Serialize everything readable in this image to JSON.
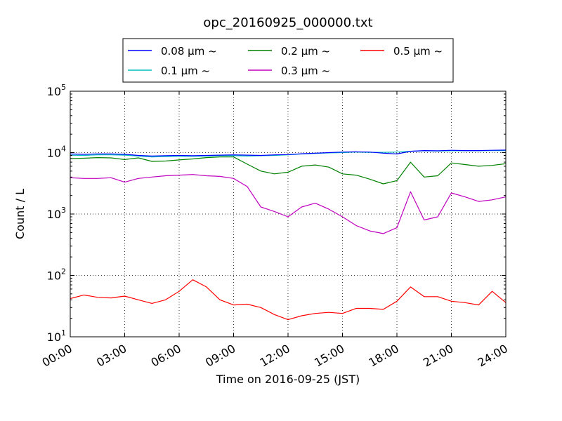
{
  "chart_data": {
    "type": "line",
    "title": "opc_20160925_000000.txt",
    "xlabel": "Time on 2016-09-25 (JST)",
    "ylabel": "Count / L",
    "yscale": "log",
    "xlim": [
      "00:00",
      "24:00"
    ],
    "ylim": [
      10,
      100000
    ],
    "x_ticks": [
      "00:00",
      "03:00",
      "06:00",
      "09:00",
      "12:00",
      "15:00",
      "18:00",
      "21:00",
      "24:00"
    ],
    "y_ticks": [
      {
        "base": "10",
        "exp": "1"
      },
      {
        "base": "10",
        "exp": "2"
      },
      {
        "base": "10",
        "exp": "3"
      },
      {
        "base": "10",
        "exp": "4"
      },
      {
        "base": "10",
        "exp": "5"
      }
    ],
    "grid": true,
    "legend_position": "top",
    "x_hours": [
      0,
      0.75,
      1.5,
      2.25,
      3,
      3.75,
      4.5,
      5.25,
      6,
      6.75,
      7.5,
      8.25,
      9,
      9.75,
      10.5,
      11.25,
      12,
      12.75,
      13.5,
      14.25,
      15,
      15.75,
      16.5,
      17.25,
      18,
      18.75,
      19.5,
      20.25,
      21,
      21.75,
      22.5,
      23.25,
      24
    ],
    "series": [
      {
        "name": "0.08 μm ~",
        "color": "#0000ff",
        "values": [
          9500,
          9400,
          9500,
          9500,
          9400,
          9000,
          8800,
          8900,
          9000,
          8900,
          9000,
          9100,
          9200,
          9100,
          9000,
          9200,
          9300,
          9600,
          9800,
          10000,
          10200,
          10300,
          10200,
          9800,
          9500,
          10500,
          10800,
          10700,
          10900,
          10800,
          10800,
          10900,
          11000
        ]
      },
      {
        "name": "0.1 μm ~",
        "color": "#00bfbf",
        "values": [
          9100,
          9000,
          9200,
          9200,
          9100,
          8800,
          8500,
          8600,
          8700,
          8700,
          8800,
          8900,
          8900,
          8800,
          8900,
          9000,
          9200,
          9500,
          9700,
          9900,
          10000,
          10200,
          10100,
          10100,
          10200,
          10500,
          10700,
          10600,
          10700,
          10700,
          10700,
          10800,
          10800
        ]
      },
      {
        "name": "0.2 μm ~",
        "color": "#008000",
        "values": [
          8000,
          8100,
          8300,
          8200,
          7700,
          8200,
          7200,
          7300,
          7600,
          7900,
          8300,
          8500,
          8500,
          6500,
          5000,
          4500,
          4800,
          6000,
          6300,
          5800,
          4500,
          4300,
          3700,
          3100,
          3500,
          7000,
          4000,
          4200,
          6800,
          6400,
          6000,
          6200,
          6600
        ]
      },
      {
        "name": "0.3 μm ~",
        "color": "#bf00bf",
        "values": [
          3900,
          3800,
          3800,
          3900,
          3300,
          3800,
          4000,
          4200,
          4300,
          4400,
          4200,
          4100,
          3800,
          2800,
          1300,
          1100,
          900,
          1300,
          1500,
          1200,
          900,
          650,
          530,
          480,
          600,
          2300,
          800,
          900,
          2200,
          1900,
          1600,
          1700,
          1900
        ]
      },
      {
        "name": "0.5 μm ~",
        "color": "#ff0000",
        "values": [
          42,
          48,
          44,
          43,
          46,
          40,
          35,
          40,
          55,
          85,
          65,
          40,
          33,
          34,
          30,
          23,
          19,
          22,
          24,
          25,
          24,
          29,
          29,
          28,
          38,
          65,
          45,
          45,
          38,
          36,
          33,
          55,
          36
        ]
      }
    ]
  }
}
